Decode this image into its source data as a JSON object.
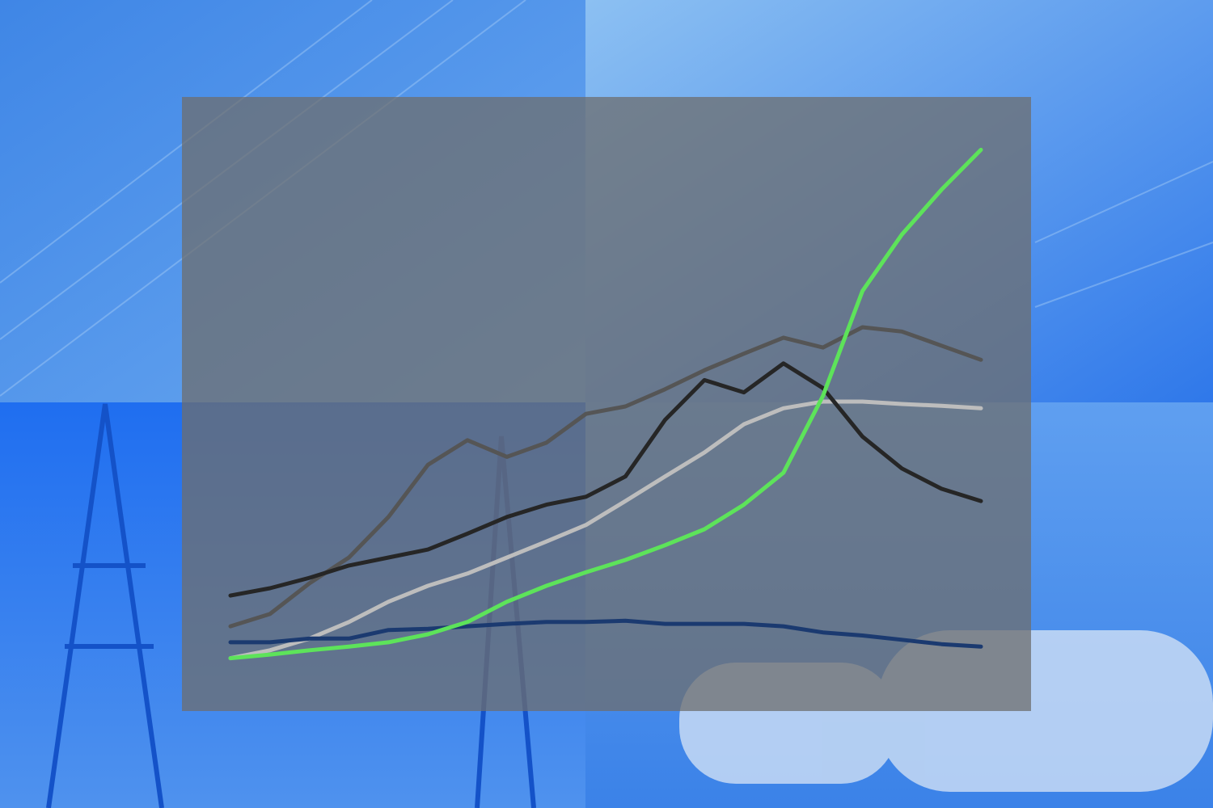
{
  "chart_data": {
    "type": "line",
    "ylim": [
      0,
      100
    ],
    "series": [
      {
        "color": "#bdbdbd",
        "values": [
          8.6,
          9.9,
          11.8,
          14.5,
          17.8,
          20.4,
          22.4,
          25,
          27.6,
          30.3,
          34.2,
          38.2,
          42.1,
          46.7,
          49.3,
          50.4,
          50.4,
          50,
          49.7,
          49.3
        ]
      },
      {
        "color": "#555555",
        "values": [
          13.8,
          15.8,
          20.8,
          25,
          31.6,
          40.1,
          44.1,
          41.4,
          43.7,
          48.4,
          49.6,
          52.4,
          55.5,
          58.2,
          60.8,
          59.2,
          62.5,
          61.8,
          59.5,
          57.2
        ]
      },
      {
        "color": "#262626",
        "values": [
          18.8,
          20.0,
          21.7,
          23.7,
          25.0,
          26.3,
          28.9,
          31.6,
          33.6,
          34.9,
          38.2,
          47.4,
          53.9,
          51.9,
          56.6,
          52.6,
          44.7,
          39.5,
          36.2,
          34.2
        ]
      },
      {
        "color": "#1b3a70",
        "values": [
          11.2,
          11.2,
          11.8,
          11.8,
          13.2,
          13.4,
          13.8,
          14.2,
          14.5,
          14.5,
          14.7,
          14.2,
          14.2,
          14.2,
          13.8,
          12.8,
          12.3,
          11.6,
          10.9,
          10.5
        ]
      },
      {
        "color": "#5de35a",
        "values": [
          8.6,
          9.2,
          9.9,
          10.5,
          11.2,
          12.5,
          14.5,
          17.8,
          20.4,
          22.6,
          24.6,
          27,
          29.6,
          33.6,
          38.8,
          51.3,
          68.4,
          77.6,
          84.9,
          91.4
        ]
      }
    ]
  }
}
